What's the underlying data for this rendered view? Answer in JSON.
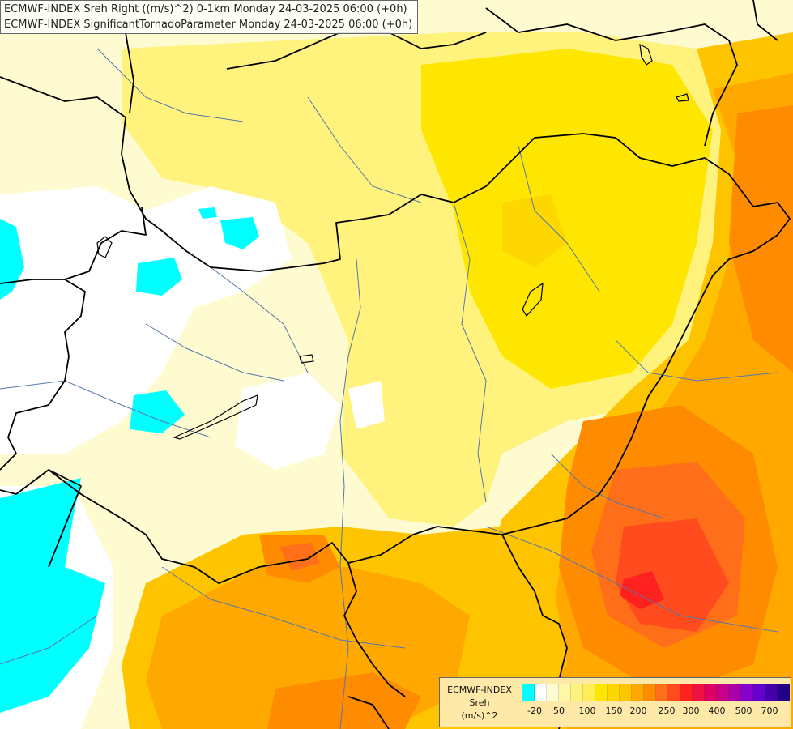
{
  "titles": {
    "line1": "ECMWF-INDEX Sreh Right ((m/s)^2) 0-1km Monday 24-03-2025 06:00 (+0h)",
    "line2": "ECMWF-INDEX SignificantTornadoParameter Monday 24-03-2025 06:00 (+0h)"
  },
  "legend": {
    "line1": "ECMWF-INDEX",
    "line2": "Sreh",
    "line3": "(m/s)^2",
    "colors": [
      "#00ffff",
      "#ffffff",
      "#fffbd0",
      "#fff6a6",
      "#fff37e",
      "#ffee55",
      "#ffe600",
      "#ffd700",
      "#ffc400",
      "#ffa800",
      "#ff8c00",
      "#ff6e19",
      "#ff4b1e",
      "#ff2020",
      "#ee1144",
      "#dd0066",
      "#c80088",
      "#aa00aa",
      "#8800cc",
      "#6600cc",
      "#4400aa",
      "#220088"
    ],
    "ticks": [
      "-20",
      "50",
      "100",
      "150",
      "200",
      "250",
      "300",
      "400",
      "500",
      "700"
    ]
  },
  "colors": {
    "cyan": "#00ffff",
    "white": "#ffffff",
    "pale_yellow": "#fffbd0",
    "light_yellow": "#fff6a6",
    "yellow": "#ffee55",
    "gold": "#ffd700",
    "orange": "#ffa800",
    "dark_orange": "#ff8c00",
    "red_orange": "#ff4b1e",
    "red": "#ff2020",
    "border": "#000000",
    "river": "#5577aa"
  }
}
